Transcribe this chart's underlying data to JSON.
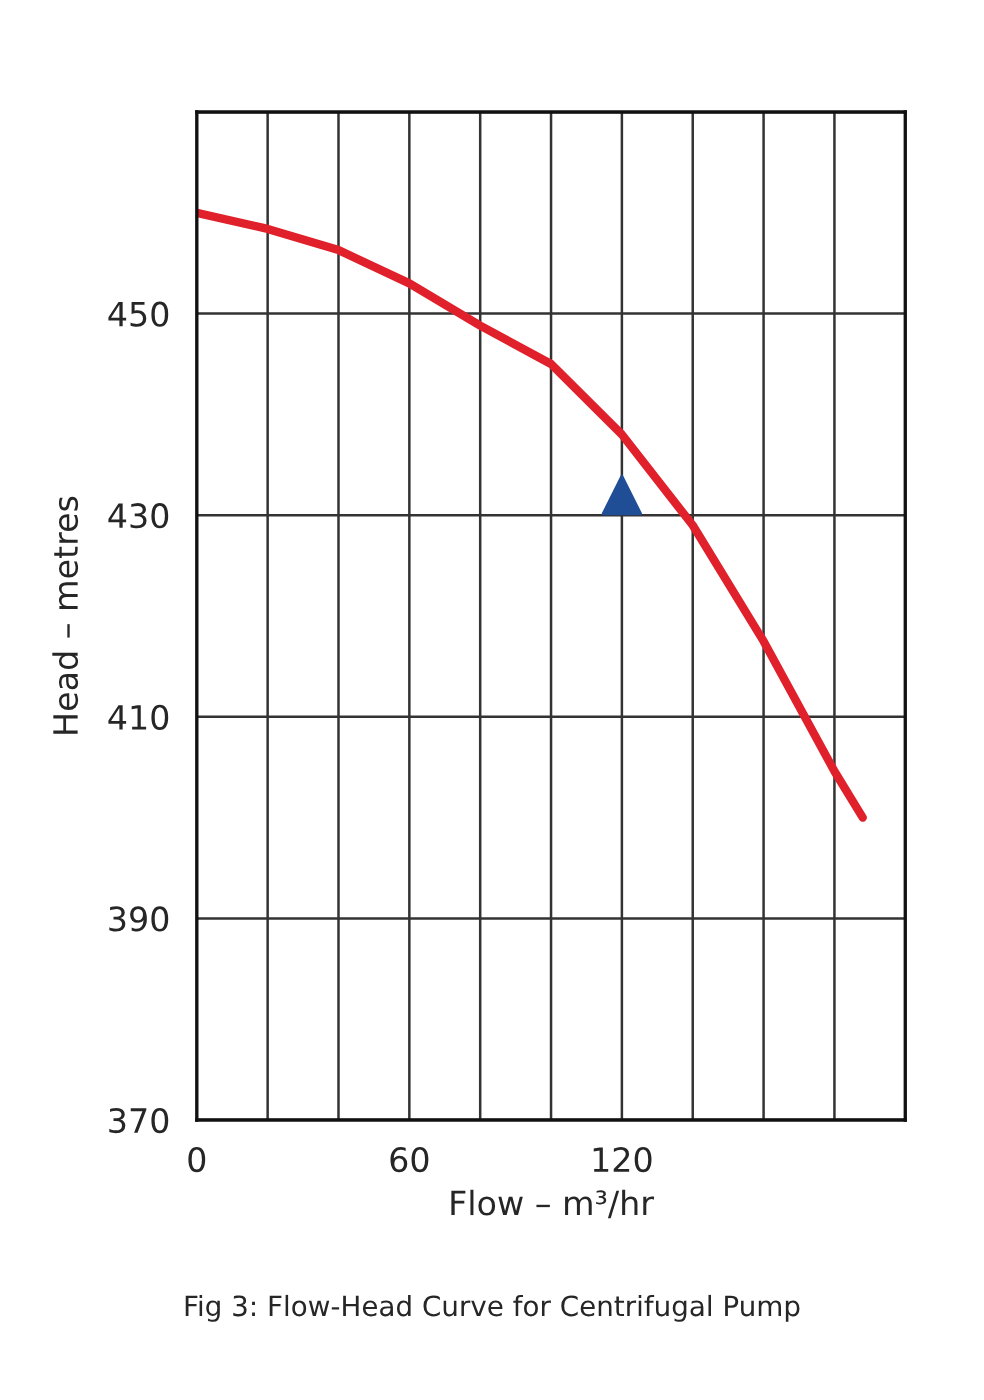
{
  "chart_data": {
    "type": "line",
    "xlabel": "Flow – m³/hr",
    "ylabel": "Head – metres",
    "annotations": [
      "Fig 3: Flow-Head Curve for Centrifugal Pump"
    ],
    "xlim": [
      0,
      200
    ],
    "ylim": [
      370,
      470
    ],
    "xticks": [
      0,
      {
        "value": 20,
        "label": null
      },
      {
        "value": 40,
        "label": null
      },
      60,
      {
        "value": 80,
        "label": null
      },
      {
        "value": 100,
        "label": null
      },
      120,
      {
        "value": 140,
        "label": null
      },
      {
        "value": 160,
        "label": null
      },
      {
        "value": 180,
        "label": null
      },
      {
        "value": 200,
        "label": null
      }
    ],
    "yticks": [
      370,
      390,
      410,
      430,
      450,
      {
        "value": 470,
        "label": null
      }
    ],
    "grid": true,
    "legend": false,
    "series": [
      {
        "color": "#e0202a",
        "marker": "none",
        "x": [
          0,
          20,
          40,
          60,
          80,
          100,
          120,
          140,
          160,
          180,
          188
        ],
        "values": [
          460,
          458.4,
          456.3,
          453,
          448.8,
          445,
          438,
          429,
          417.5,
          404.6,
          400
        ]
      },
      {
        "type": "scatter",
        "color": "#1f4e96",
        "marker": "triangle",
        "x": [
          120
        ],
        "values": [
          432
        ]
      }
    ]
  }
}
